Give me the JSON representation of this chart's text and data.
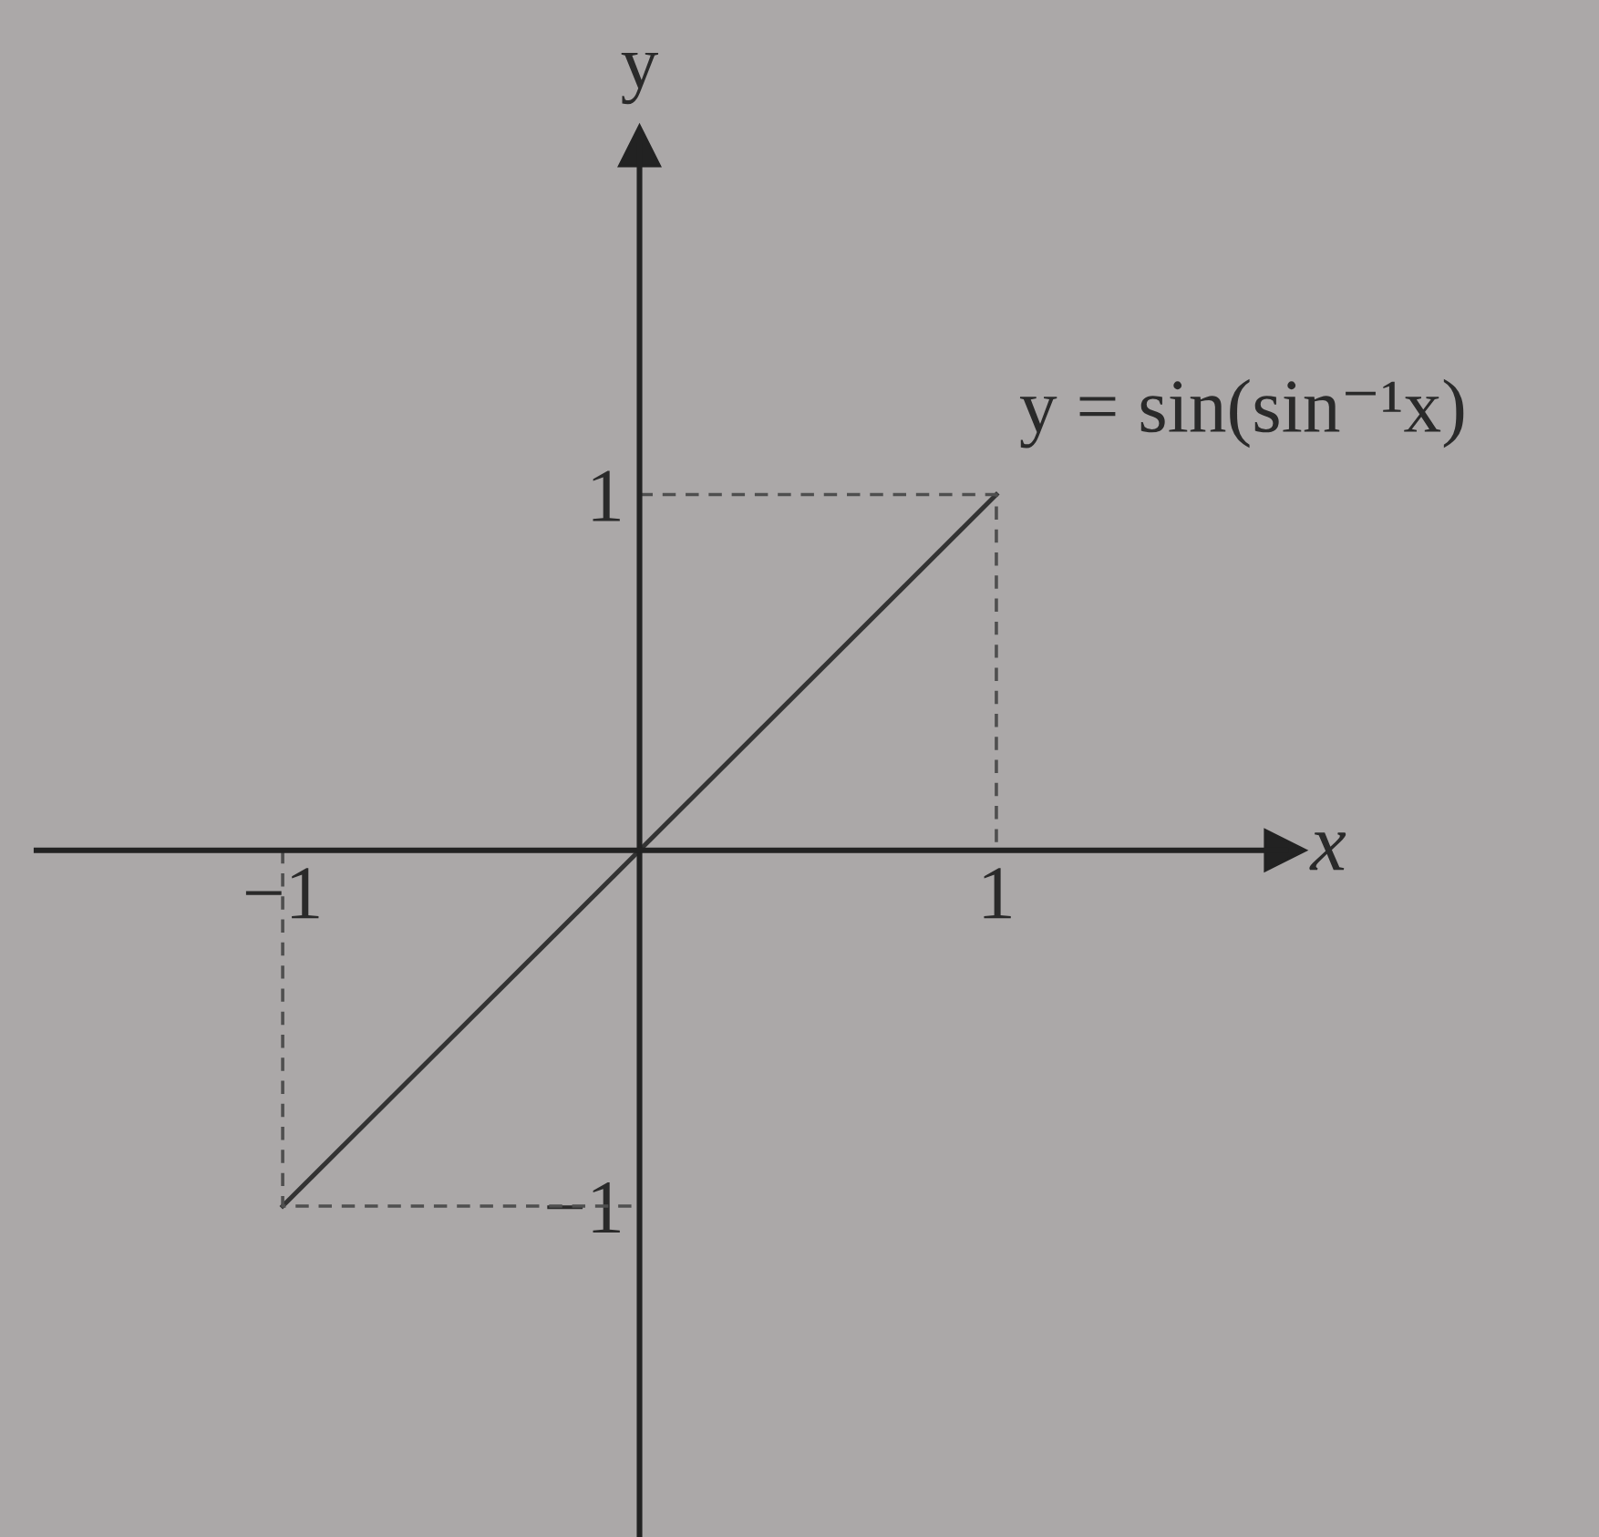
{
  "chart_data": {
    "type": "line",
    "xlabel": "x",
    "ylabel": "y",
    "annotations": [
      {
        "text": "y = sin(sin⁻¹x)",
        "x": 1,
        "y": 1
      }
    ],
    "series": [
      {
        "x": [
          -1,
          1
        ],
        "values": [
          -1,
          1
        ],
        "color": "#333333"
      },
      {
        "x": [
          0,
          1,
          1
        ],
        "values": [
          1,
          1,
          0
        ],
        "color": "#4f4f4f",
        "line_style": "dashed"
      },
      {
        "x": [
          -1,
          -1,
          0
        ],
        "values": [
          0,
          -1,
          -1
        ],
        "color": "#4f4f4f",
        "line_style": "dashed"
      }
    ],
    "xlim": [
      -1.69,
      1.81
    ],
    "ylim": [
      -1.93,
      1.98
    ],
    "xticks": [
      {
        "value": -1,
        "label": "−1"
      },
      1
    ],
    "yticks": [
      {
        "value": -1,
        "label": "−1"
      },
      1
    ],
    "grid": false,
    "marker": "none",
    "line_style": "solid"
  }
}
